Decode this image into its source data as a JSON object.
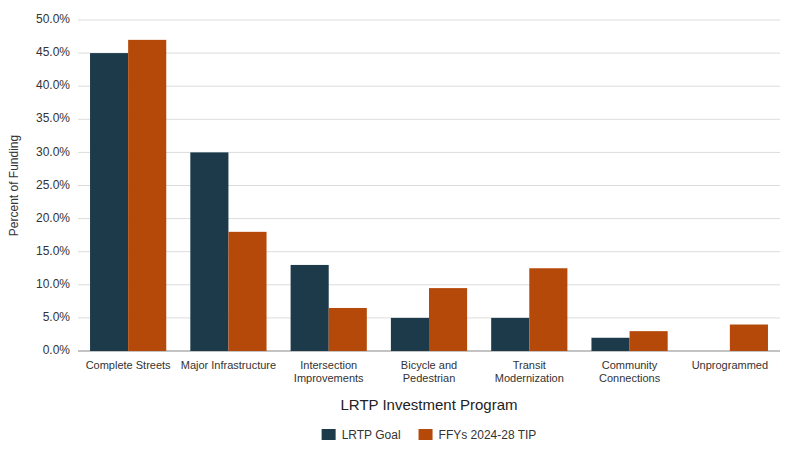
{
  "chart_data": {
    "type": "bar",
    "categories": [
      "Complete Streets",
      "Major Infrastructure",
      "Intersection\nImprovements",
      "Bicycle and\nPedestrian",
      "Transit\nModernization",
      "Community\nConnections",
      "Unprogrammed"
    ],
    "series": [
      {
        "name": "LRTP Goal",
        "color": "#1c3a4a",
        "values": [
          45.0,
          30.0,
          13.0,
          5.0,
          5.0,
          2.0,
          0.0
        ]
      },
      {
        "name": "FFYs 2024-28 TIP",
        "color": "#b5490a",
        "values": [
          47.0,
          18.0,
          6.5,
          9.5,
          12.5,
          3.0,
          4.0
        ]
      }
    ],
    "xlabel": "LRTP Investment Program",
    "ylabel": "Percent of Funding",
    "ylim": [
      0,
      50
    ],
    "yticks": [
      {
        "value": 0,
        "label": "0.0%"
      },
      {
        "value": 5,
        "label": "5.0%"
      },
      {
        "value": 10,
        "label": "10.0%"
      },
      {
        "value": 15,
        "label": "15.0%"
      },
      {
        "value": 20,
        "label": "20.0%"
      },
      {
        "value": 25,
        "label": "25.0%"
      },
      {
        "value": 30,
        "label": "30.0%"
      },
      {
        "value": 35,
        "label": "35.0%"
      },
      {
        "value": 40,
        "label": "40.0%"
      },
      {
        "value": 45,
        "label": "45.0%"
      },
      {
        "value": 50,
        "label": "50.0%"
      }
    ],
    "grid": true,
    "legend": "bottom"
  }
}
